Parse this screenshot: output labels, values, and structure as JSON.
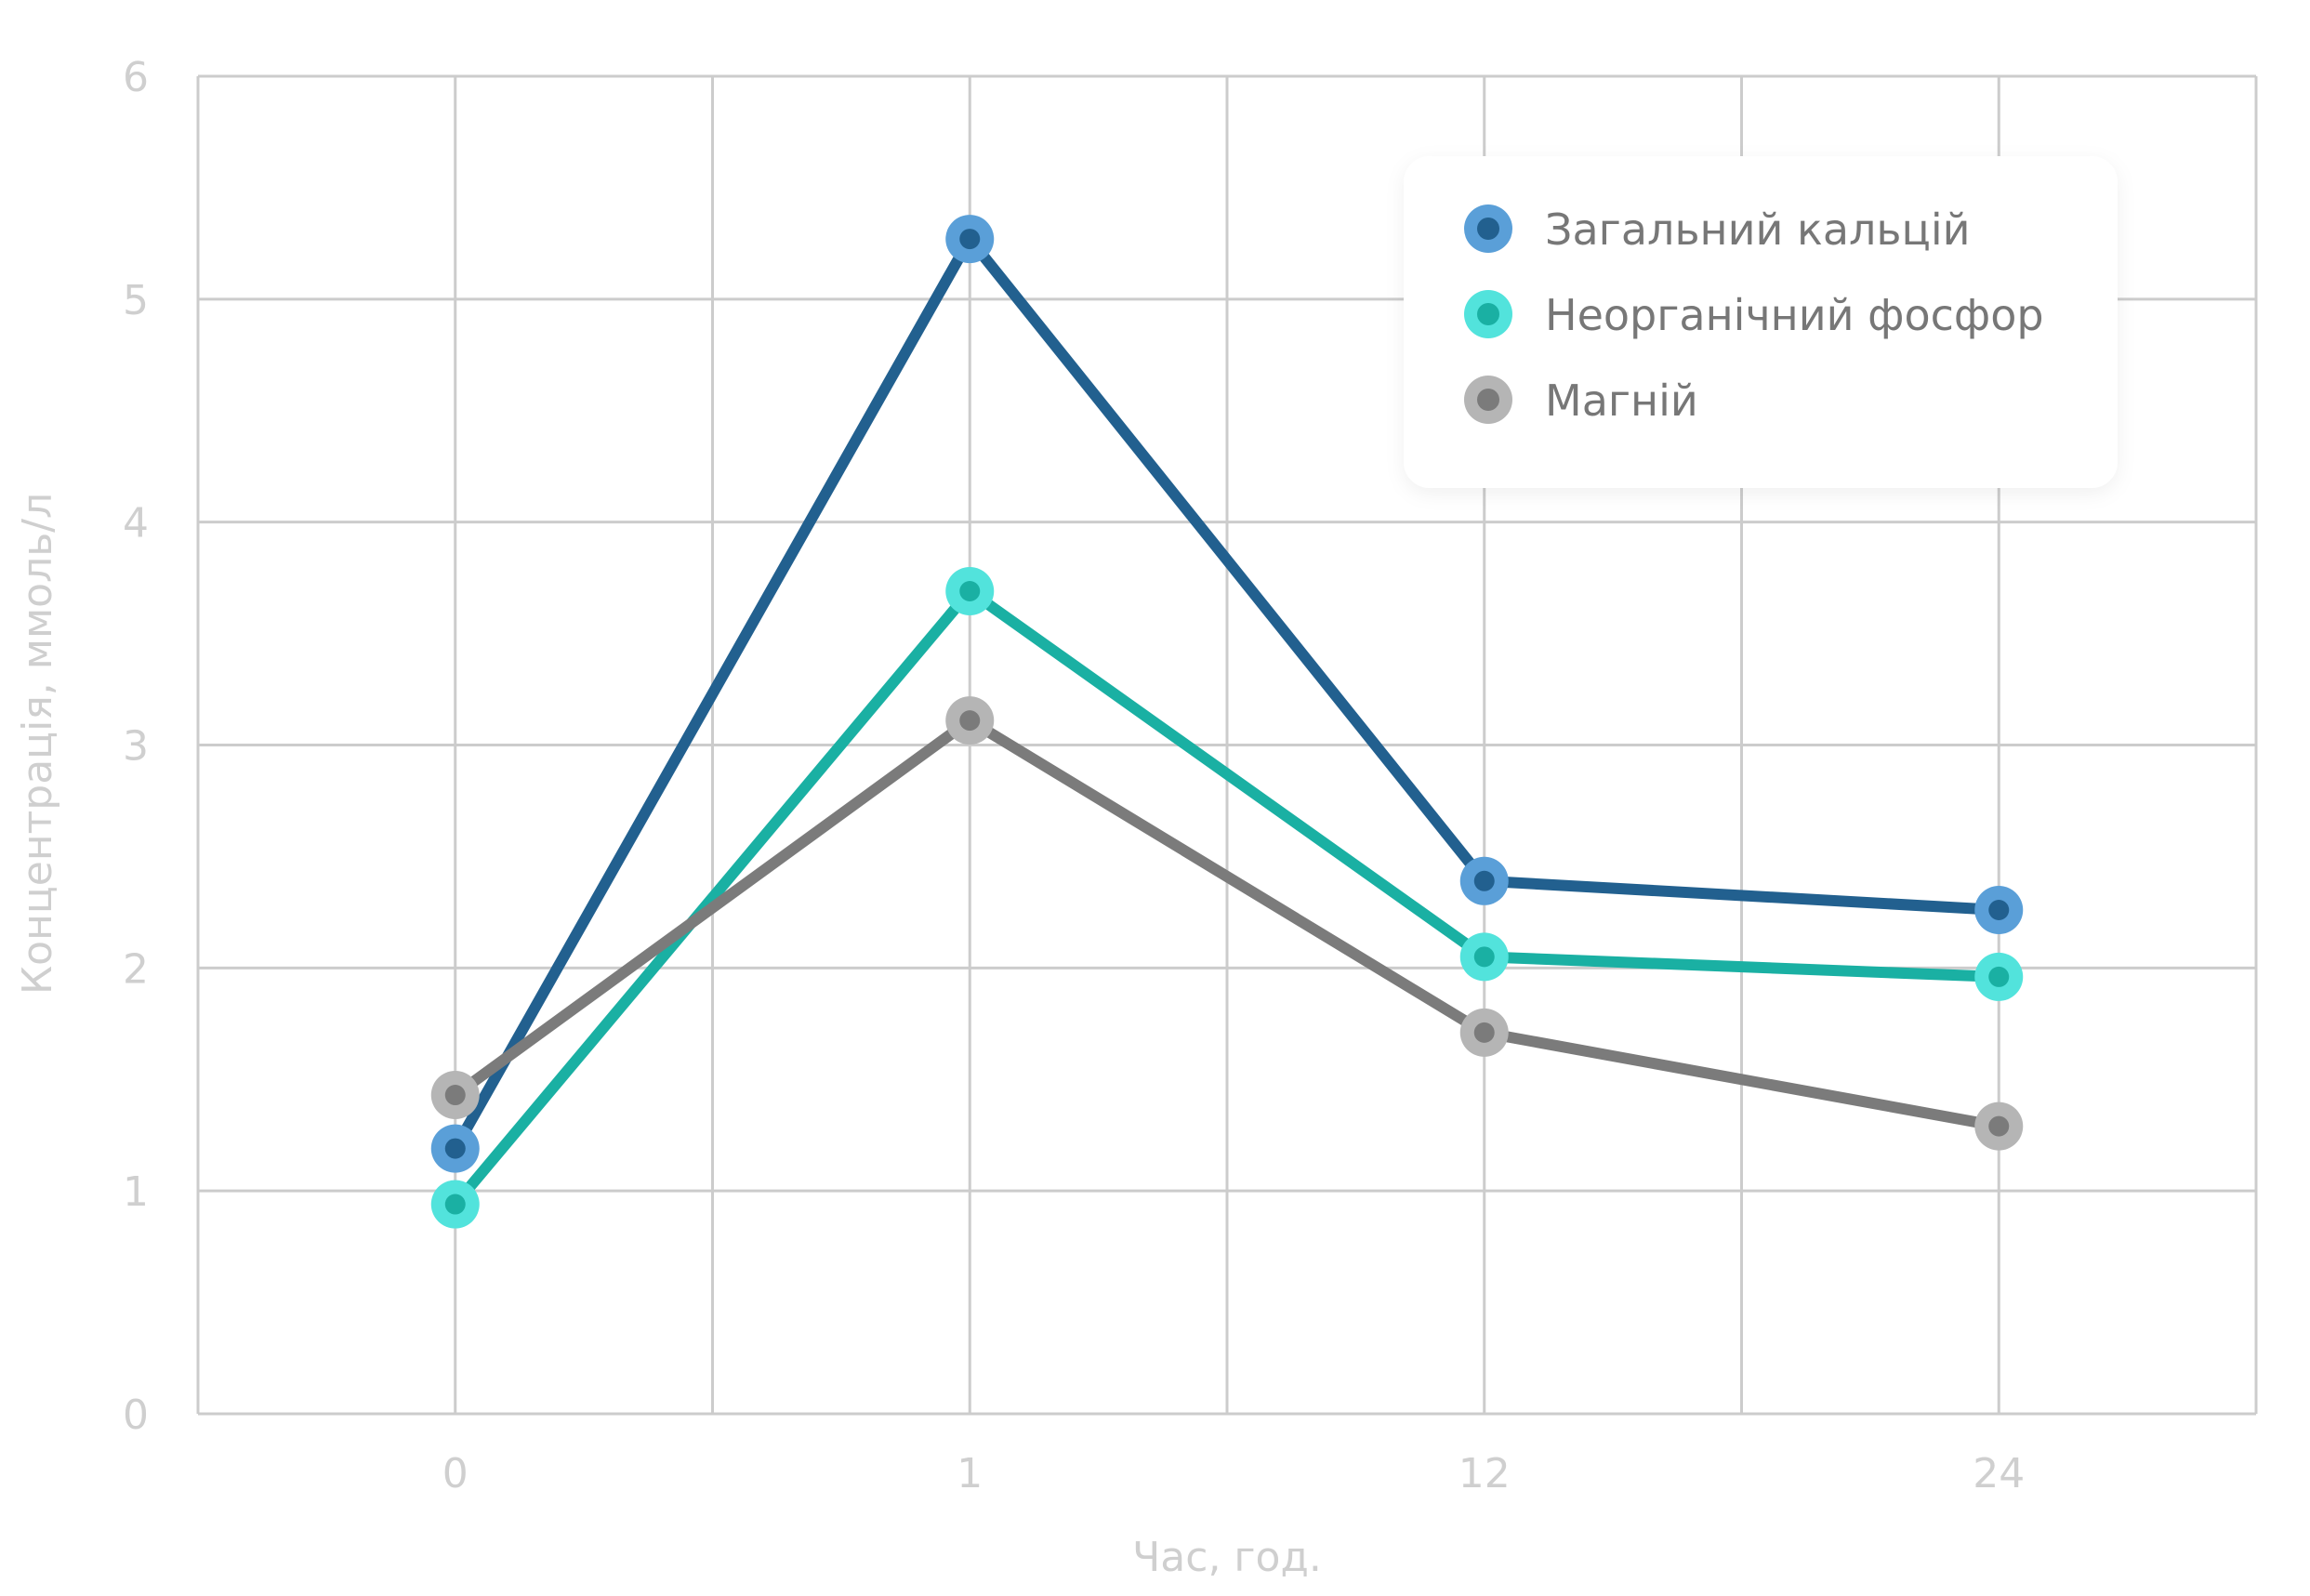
{
  "chart_data": {
    "type": "line",
    "title": "",
    "xlabel": "Час, год.",
    "ylabel": "Концентрація, ммоль/л",
    "categories": [
      "0",
      "1",
      "12",
      "24"
    ],
    "ylim": [
      0,
      6
    ],
    "yticks": [
      "0",
      "1",
      "2",
      "3",
      "4",
      "5",
      "6"
    ],
    "grid": true,
    "legend_position": "top-right",
    "series": [
      {
        "name": "Загальний кальцій",
        "values": [
          1.19,
          5.27,
          2.39,
          2.26
        ],
        "line_color": "#22608f",
        "marker_color": "#5a9fd8"
      },
      {
        "name": "Неорганічний фосфор",
        "values": [
          0.94,
          3.69,
          2.05,
          1.96
        ],
        "line_color": "#1ab0a3",
        "marker_color": "#52e3dc"
      },
      {
        "name": "Магній",
        "values": [
          1.43,
          3.11,
          1.71,
          1.29
        ],
        "line_color": "#7b7b7b",
        "marker_color": "#b5b5b5"
      }
    ]
  }
}
